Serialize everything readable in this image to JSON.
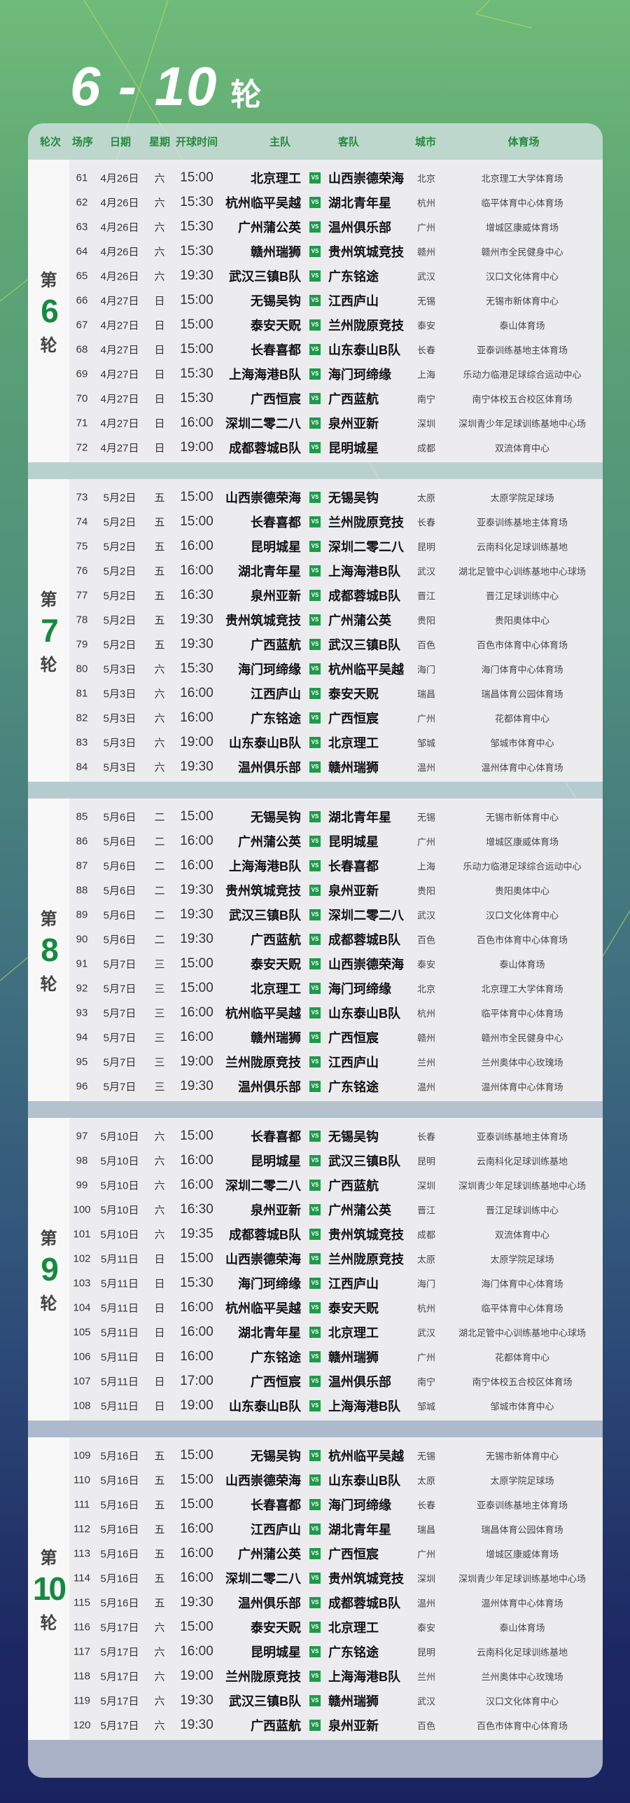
{
  "title": {
    "range": "6 - 10",
    "unit": "轮"
  },
  "colors": {
    "accent": "#248a3d",
    "vs_badge": "#1e9a4c",
    "round_number": "#168a3e"
  },
  "header": [
    "轮次",
    "场序",
    "日期",
    "星期",
    "开球时间",
    "主队",
    "客队",
    "城市",
    "体育场"
  ],
  "vs_label": "VS",
  "match_columns": [
    "场序",
    "日期",
    "星期",
    "开球时间",
    "主队",
    "客队",
    "城市",
    "体育场"
  ],
  "rounds": [
    {
      "prefix": "第",
      "number": "6",
      "suffix": "轮",
      "matches": [
        [
          "61",
          "4月26日",
          "六",
          "15:00",
          "北京理工",
          "山西崇德荣海",
          "北京",
          "北京理工大学体育场"
        ],
        [
          "62",
          "4月26日",
          "六",
          "15:30",
          "杭州临平吴越",
          "湖北青年星",
          "杭州",
          "临平体育中心体育场"
        ],
        [
          "63",
          "4月26日",
          "六",
          "15:30",
          "广州蒲公英",
          "温州俱乐部",
          "广州",
          "增城区康威体育场"
        ],
        [
          "64",
          "4月26日",
          "六",
          "15:30",
          "赣州瑞狮",
          "贵州筑城竞技",
          "赣州",
          "赣州市全民健身中心"
        ],
        [
          "65",
          "4月26日",
          "六",
          "19:30",
          "武汉三镇B队",
          "广东铭途",
          "武汉",
          "汉口文化体育中心"
        ],
        [
          "66",
          "4月27日",
          "日",
          "15:00",
          "无锡吴钩",
          "江西庐山",
          "无锡",
          "无锡市新体育中心"
        ],
        [
          "67",
          "4月27日",
          "日",
          "15:00",
          "泰安天贶",
          "兰州陇原竞技",
          "泰安",
          "泰山体育场"
        ],
        [
          "68",
          "4月27日",
          "日",
          "15:00",
          "长春喜都",
          "山东泰山B队",
          "长春",
          "亚泰训练基地主体育场"
        ],
        [
          "69",
          "4月27日",
          "日",
          "15:30",
          "上海海港B队",
          "海门珂缔缘",
          "上海",
          "乐动力临港足球综合运动中心"
        ],
        [
          "70",
          "4月27日",
          "日",
          "15:30",
          "广西恒宸",
          "广西蓝航",
          "南宁",
          "南宁体校五合校区体育场"
        ],
        [
          "71",
          "4月27日",
          "日",
          "16:00",
          "深圳二零二八",
          "泉州亚新",
          "深圳",
          "深圳青少年足球训练基地中心场"
        ],
        [
          "72",
          "4月27日",
          "日",
          "19:00",
          "成都蓉城B队",
          "昆明城星",
          "成都",
          "双流体育中心"
        ]
      ]
    },
    {
      "prefix": "第",
      "number": "7",
      "suffix": "轮",
      "matches": [
        [
          "73",
          "5月2日",
          "五",
          "15:00",
          "山西崇德荣海",
          "无锡吴钩",
          "太原",
          "太原学院足球场"
        ],
        [
          "74",
          "5月2日",
          "五",
          "15:00",
          "长春喜都",
          "兰州陇原竞技",
          "长春",
          "亚泰训练基地主体育场"
        ],
        [
          "75",
          "5月2日",
          "五",
          "16:00",
          "昆明城星",
          "深圳二零二八",
          "昆明",
          "云南科化足球训练基地"
        ],
        [
          "76",
          "5月2日",
          "五",
          "16:00",
          "湖北青年星",
          "上海海港B队",
          "武汉",
          "湖北足管中心训练基地中心球场"
        ],
        [
          "77",
          "5月2日",
          "五",
          "16:30",
          "泉州亚新",
          "成都蓉城B队",
          "晋江",
          "晋江足球训练中心"
        ],
        [
          "78",
          "5月2日",
          "五",
          "19:30",
          "贵州筑城竞技",
          "广州蒲公英",
          "贵阳",
          "贵阳奥体中心"
        ],
        [
          "79",
          "5月2日",
          "五",
          "19:30",
          "广西蓝航",
          "武汉三镇B队",
          "百色",
          "百色市体育中心体育场"
        ],
        [
          "80",
          "5月3日",
          "六",
          "15:30",
          "海门珂缔缘",
          "杭州临平吴越",
          "海门",
          "海门体育中心体育场"
        ],
        [
          "81",
          "5月3日",
          "六",
          "16:00",
          "江西庐山",
          "泰安天贶",
          "瑞昌",
          "瑞昌体育公园体育场"
        ],
        [
          "82",
          "5月3日",
          "六",
          "16:00",
          "广东铭途",
          "广西恒宸",
          "广州",
          "花都体育中心"
        ],
        [
          "83",
          "5月3日",
          "六",
          "19:00",
          "山东泰山B队",
          "北京理工",
          "邹城",
          "邹城市体育中心"
        ],
        [
          "84",
          "5月3日",
          "六",
          "19:30",
          "温州俱乐部",
          "赣州瑞狮",
          "温州",
          "温州体育中心体育场"
        ]
      ]
    },
    {
      "prefix": "第",
      "number": "8",
      "suffix": "轮",
      "matches": [
        [
          "85",
          "5月6日",
          "二",
          "15:00",
          "无锡吴钩",
          "湖北青年星",
          "无锡",
          "无锡市新体育中心"
        ],
        [
          "86",
          "5月6日",
          "二",
          "16:00",
          "广州蒲公英",
          "昆明城星",
          "广州",
          "增城区康威体育场"
        ],
        [
          "87",
          "5月6日",
          "二",
          "16:00",
          "上海海港B队",
          "长春喜都",
          "上海",
          "乐动力临港足球综合运动中心"
        ],
        [
          "88",
          "5月6日",
          "二",
          "19:30",
          "贵州筑城竞技",
          "泉州亚新",
          "贵阳",
          "贵阳奥体中心"
        ],
        [
          "89",
          "5月6日",
          "二",
          "19:30",
          "武汉三镇B队",
          "深圳二零二八",
          "武汉",
          "汉口文化体育中心"
        ],
        [
          "90",
          "5月6日",
          "二",
          "19:30",
          "广西蓝航",
          "成都蓉城B队",
          "百色",
          "百色市体育中心体育场"
        ],
        [
          "91",
          "5月7日",
          "三",
          "15:00",
          "泰安天贶",
          "山西崇德荣海",
          "泰安",
          "泰山体育场"
        ],
        [
          "92",
          "5月7日",
          "三",
          "15:00",
          "北京理工",
          "海门珂缔缘",
          "北京",
          "北京理工大学体育场"
        ],
        [
          "93",
          "5月7日",
          "三",
          "16:00",
          "杭州临平吴越",
          "山东泰山B队",
          "杭州",
          "临平体育中心体育场"
        ],
        [
          "94",
          "5月7日",
          "三",
          "16:00",
          "赣州瑞狮",
          "广西恒宸",
          "赣州",
          "赣州市全民健身中心"
        ],
        [
          "95",
          "5月7日",
          "三",
          "19:00",
          "兰州陇原竞技",
          "江西庐山",
          "兰州",
          "兰州奥体中心玫瑰场"
        ],
        [
          "96",
          "5月7日",
          "三",
          "19:30",
          "温州俱乐部",
          "广东铭途",
          "温州",
          "温州体育中心体育场"
        ]
      ]
    },
    {
      "prefix": "第",
      "number": "9",
      "suffix": "轮",
      "matches": [
        [
          "97",
          "5月10日",
          "六",
          "15:00",
          "长春喜都",
          "无锡吴钩",
          "长春",
          "亚泰训练基地主体育场"
        ],
        [
          "98",
          "5月10日",
          "六",
          "16:00",
          "昆明城星",
          "武汉三镇B队",
          "昆明",
          "云南科化足球训练基地"
        ],
        [
          "99",
          "5月10日",
          "六",
          "16:00",
          "深圳二零二八",
          "广西蓝航",
          "深圳",
          "深圳青少年足球训练基地中心场"
        ],
        [
          "100",
          "5月10日",
          "六",
          "16:30",
          "泉州亚新",
          "广州蒲公英",
          "晋江",
          "晋江足球训练中心"
        ],
        [
          "101",
          "5月10日",
          "六",
          "19:35",
          "成都蓉城B队",
          "贵州筑城竞技",
          "成都",
          "双流体育中心"
        ],
        [
          "102",
          "5月11日",
          "日",
          "15:00",
          "山西崇德荣海",
          "兰州陇原竞技",
          "太原",
          "太原学院足球场"
        ],
        [
          "103",
          "5月11日",
          "日",
          "15:30",
          "海门珂缔缘",
          "江西庐山",
          "海门",
          "海门体育中心体育场"
        ],
        [
          "104",
          "5月11日",
          "日",
          "16:00",
          "杭州临平吴越",
          "泰安天贶",
          "杭州",
          "临平体育中心体育场"
        ],
        [
          "105",
          "5月11日",
          "日",
          "16:00",
          "湖北青年星",
          "北京理工",
          "武汉",
          "湖北足管中心训练基地中心球场"
        ],
        [
          "106",
          "5月11日",
          "日",
          "16:00",
          "广东铭途",
          "赣州瑞狮",
          "广州",
          "花都体育中心"
        ],
        [
          "107",
          "5月11日",
          "日",
          "17:00",
          "广西恒宸",
          "温州俱乐部",
          "南宁",
          "南宁体校五合校区体育场"
        ],
        [
          "108",
          "5月11日",
          "日",
          "19:00",
          "山东泰山B队",
          "上海海港B队",
          "邹城",
          "邹城市体育中心"
        ]
      ]
    },
    {
      "prefix": "第",
      "number": "10",
      "suffix": "轮",
      "matches": [
        [
          "109",
          "5月16日",
          "五",
          "15:00",
          "无锡吴钩",
          "杭州临平吴越",
          "无锡",
          "无锡市新体育中心"
        ],
        [
          "110",
          "5月16日",
          "五",
          "15:00",
          "山西崇德荣海",
          "山东泰山B队",
          "太原",
          "太原学院足球场"
        ],
        [
          "111",
          "5月16日",
          "五",
          "15:00",
          "长春喜都",
          "海门珂缔缘",
          "长春",
          "亚泰训练基地主体育场"
        ],
        [
          "112",
          "5月16日",
          "五",
          "16:00",
          "江西庐山",
          "湖北青年星",
          "瑞昌",
          "瑞昌体育公园体育场"
        ],
        [
          "113",
          "5月16日",
          "五",
          "16:00",
          "广州蒲公英",
          "广西恒宸",
          "广州",
          "增城区康威体育场"
        ],
        [
          "114",
          "5月16日",
          "五",
          "16:00",
          "深圳二零二八",
          "贵州筑城竞技",
          "深圳",
          "深圳青少年足球训练基地中心场"
        ],
        [
          "115",
          "5月16日",
          "五",
          "19:30",
          "温州俱乐部",
          "成都蓉城B队",
          "温州",
          "温州体育中心体育场"
        ],
        [
          "116",
          "5月17日",
          "六",
          "15:00",
          "泰安天贶",
          "北京理工",
          "泰安",
          "泰山体育场"
        ],
        [
          "117",
          "5月17日",
          "六",
          "16:00",
          "昆明城星",
          "广东铭途",
          "昆明",
          "云南科化足球训练基地"
        ],
        [
          "118",
          "5月17日",
          "六",
          "19:00",
          "兰州陇原竞技",
          "上海海港B队",
          "兰州",
          "兰州奥体中心玫瑰场"
        ],
        [
          "119",
          "5月17日",
          "六",
          "19:30",
          "武汉三镇B队",
          "赣州瑞狮",
          "武汉",
          "汉口文化体育中心"
        ],
        [
          "120",
          "5月17日",
          "六",
          "19:30",
          "广西蓝航",
          "泉州亚新",
          "百色",
          "百色市体育中心体育场"
        ]
      ]
    }
  ]
}
